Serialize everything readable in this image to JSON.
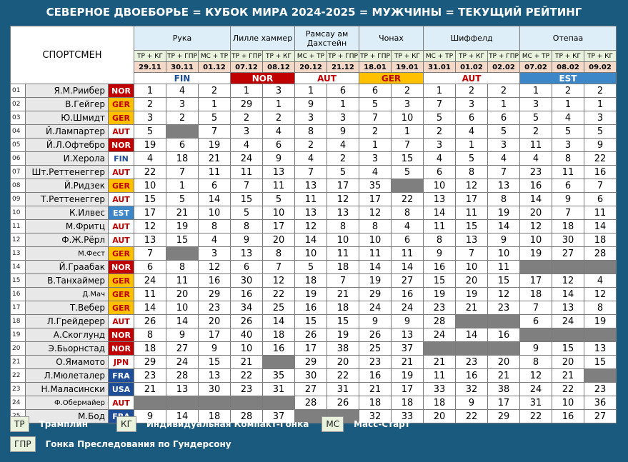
{
  "title": "СЕВЕРНОЕ ДВОЕБОРЬЕ = КУБОК МИРА 2024-2025 = МУЖЧИНЫ = ТЕКУЩИЙ РЕЙТИНГ",
  "header_athlete": "СПОРТСМЕН",
  "locations": [
    {
      "name": "Рука",
      "span": 3
    },
    {
      "name": "Лилле хаммер",
      "span": 2
    },
    {
      "name": "Рамсау ам Дахстейн",
      "span": 2
    },
    {
      "name": "Чонах",
      "span": 2
    },
    {
      "name": "Шиффелд",
      "span": 3
    },
    {
      "name": "Отепаа",
      "span": 3
    }
  ],
  "events": [
    "ТР + КГ",
    "ТР + ГПР",
    "МС + ТР",
    "ТР + ГПР",
    "ТР + КГ",
    "МС + ТР",
    "ТР + ГПР",
    "ТР + ГПР",
    "ТР + КГ",
    "МС + ТР",
    "ТР + КГ",
    "ТР + ГПР",
    "МС + ТР",
    "ТР + КГ",
    "ТР + КГ"
  ],
  "dates": [
    "29.11",
    "30.11",
    "01.12",
    "07.12",
    "08.12",
    "20.12",
    "21.12",
    "18.01",
    "19.01",
    "31.01",
    "01.02",
    "02.02",
    "07.02",
    "08.02",
    "09.02"
  ],
  "host_countries": [
    {
      "code": "FIN",
      "span": 3
    },
    {
      "code": "NOR",
      "span": 2
    },
    {
      "code": "AUT",
      "span": 2
    },
    {
      "code": "GER",
      "span": 2
    },
    {
      "code": "AUT",
      "span": 3
    },
    {
      "code": "EST",
      "span": 3
    }
  ],
  "athletes": [
    {
      "rank": "01",
      "name": "Я.М.Риибер",
      "country": "NOR",
      "results": [
        "1",
        "4",
        "2",
        "1",
        "3",
        "1",
        "6",
        "6",
        "2",
        "1",
        "2",
        "2",
        "1",
        "2",
        "2"
      ]
    },
    {
      "rank": "02",
      "name": "В.Гейгер",
      "country": "GER",
      "results": [
        "2",
        "3",
        "1",
        "29",
        "1",
        "9",
        "1",
        "5",
        "3",
        "7",
        "3",
        "1",
        "3",
        "1",
        "1"
      ]
    },
    {
      "rank": "03",
      "name": "Ю.Шмидт",
      "country": "GER",
      "results": [
        "3",
        "2",
        "5",
        "2",
        "2",
        "3",
        "3",
        "7",
        "10",
        "5",
        "6",
        "6",
        "5",
        "4",
        "3"
      ]
    },
    {
      "rank": "04",
      "name": "Й.Лампартер",
      "country": "AUT",
      "results": [
        "5",
        "",
        "7",
        "3",
        "4",
        "8",
        "9",
        "2",
        "1",
        "2",
        "4",
        "5",
        "2",
        "5",
        "5"
      ]
    },
    {
      "rank": "05",
      "name": "Й.Л.Офтебро",
      "country": "NOR",
      "results": [
        "19",
        "6",
        "19",
        "4",
        "6",
        "2",
        "4",
        "1",
        "7",
        "3",
        "1",
        "3",
        "11",
        "3",
        "9"
      ]
    },
    {
      "rank": "06",
      "name": "И.Херола",
      "country": "FIN",
      "results": [
        "4",
        "18",
        "21",
        "24",
        "9",
        "4",
        "2",
        "3",
        "15",
        "4",
        "5",
        "4",
        "4",
        "8",
        "22"
      ]
    },
    {
      "rank": "07",
      "name": "Шт.Реттенеггер",
      "country": "AUT",
      "results": [
        "22",
        "7",
        "11",
        "11",
        "13",
        "7",
        "5",
        "4",
        "5",
        "6",
        "8",
        "7",
        "23",
        "11",
        "16"
      ]
    },
    {
      "rank": "08",
      "name": "Й.Ридзек",
      "country": "GER",
      "results": [
        "10",
        "1",
        "6",
        "7",
        "11",
        "13",
        "17",
        "35",
        "",
        "10",
        "12",
        "13",
        "16",
        "6",
        "7"
      ]
    },
    {
      "rank": "09",
      "name": "Т.Реттенеггер",
      "country": "AUT",
      "results": [
        "15",
        "5",
        "14",
        "15",
        "5",
        "11",
        "12",
        "17",
        "22",
        "13",
        "17",
        "8",
        "14",
        "9",
        "6"
      ]
    },
    {
      "rank": "10",
      "name": "К.Илвес",
      "country": "EST",
      "results": [
        "17",
        "21",
        "10",
        "5",
        "10",
        "13",
        "13",
        "12",
        "8",
        "14",
        "11",
        "19",
        "20",
        "7",
        "11"
      ]
    },
    {
      "rank": "11",
      "name": "М.Фритц",
      "country": "AUT",
      "results": [
        "12",
        "19",
        "8",
        "8",
        "17",
        "12",
        "8",
        "8",
        "4",
        "11",
        "15",
        "14",
        "12",
        "18",
        "14"
      ]
    },
    {
      "rank": "12",
      "name": "Ф.Ж.Рёрл",
      "country": "AUT",
      "results": [
        "13",
        "15",
        "4",
        "9",
        "20",
        "14",
        "10",
        "10",
        "6",
        "8",
        "13",
        "9",
        "10",
        "30",
        "18"
      ]
    },
    {
      "rank": "13",
      "name": "М.Фест",
      "country": "GER",
      "results": [
        "7",
        "",
        "3",
        "13",
        "8",
        "10",
        "11",
        "11",
        "11",
        "9",
        "7",
        "10",
        "19",
        "27",
        "28"
      ]
    },
    {
      "rank": "14",
      "name": "Й.Граабак",
      "country": "NOR",
      "results": [
        "6",
        "8",
        "12",
        "6",
        "7",
        "5",
        "18",
        "14",
        "14",
        "16",
        "10",
        "11",
        "",
        "",
        ""
      ]
    },
    {
      "rank": "15",
      "name": "В.Танхаймер",
      "country": "GER",
      "results": [
        "24",
        "11",
        "16",
        "30",
        "12",
        "18",
        "7",
        "19",
        "27",
        "15",
        "20",
        "15",
        "17",
        "12",
        "4"
      ]
    },
    {
      "rank": "16",
      "name": "Д.Мач",
      "country": "GER",
      "results": [
        "11",
        "20",
        "29",
        "16",
        "22",
        "19",
        "21",
        "29",
        "16",
        "19",
        "19",
        "12",
        "18",
        "14",
        "12"
      ]
    },
    {
      "rank": "17",
      "name": "Т.Вебер",
      "country": "GER",
      "results": [
        "14",
        "10",
        "23",
        "34",
        "25",
        "16",
        "18",
        "24",
        "24",
        "23",
        "21",
        "23",
        "7",
        "13",
        "8"
      ]
    },
    {
      "rank": "18",
      "name": "Л.Грейдерер",
      "country": "AUT",
      "results": [
        "26",
        "14",
        "20",
        "26",
        "14",
        "15",
        "15",
        "9",
        "9",
        "28",
        "",
        "",
        "6",
        "24",
        "19"
      ]
    },
    {
      "rank": "19",
      "name": "А.Скоглунд",
      "country": "NOR",
      "results": [
        "8",
        "9",
        "17",
        "40",
        "18",
        "26",
        "19",
        "26",
        "13",
        "24",
        "14",
        "16",
        "",
        "",
        ""
      ]
    },
    {
      "rank": "20",
      "name": "Э.Бьорнстад",
      "country": "NOR",
      "results": [
        "18",
        "27",
        "9",
        "10",
        "16",
        "17",
        "38",
        "25",
        "37",
        "",
        "",
        "",
        "9",
        "15",
        "13"
      ]
    },
    {
      "rank": "21",
      "name": "О.Ямамото",
      "country": "JPN",
      "results": [
        "29",
        "24",
        "15",
        "21",
        "",
        "29",
        "20",
        "23",
        "21",
        "21",
        "23",
        "20",
        "8",
        "20",
        "15"
      ]
    },
    {
      "rank": "22",
      "name": "Л.Мюлеталер",
      "country": "FRA",
      "results": [
        "23",
        "28",
        "13",
        "22",
        "35",
        "30",
        "22",
        "16",
        "19",
        "11",
        "16",
        "21",
        "12",
        "21",
        ""
      ]
    },
    {
      "rank": "23",
      "name": "Н.Маласински",
      "country": "USA",
      "results": [
        "21",
        "13",
        "30",
        "23",
        "31",
        "27",
        "31",
        "21",
        "17",
        "33",
        "32",
        "38",
        "24",
        "22",
        "23"
      ]
    },
    {
      "rank": "24",
      "name": "Ф.Обермайер",
      "country": "AUT",
      "results": [
        "",
        "",
        "",
        "",
        "",
        "28",
        "26",
        "18",
        "18",
        "18",
        "9",
        "17",
        "31",
        "10",
        "36"
      ]
    },
    {
      "rank": "25",
      "name": "М.Бод",
      "country": "FRA",
      "results": [
        "9",
        "14",
        "18",
        "28",
        "37",
        "",
        "",
        "32",
        "33",
        "20",
        "22",
        "29",
        "22",
        "16",
        "27"
      ]
    }
  ],
  "legend": [
    {
      "abbr": "ТР",
      "text": "Трамплин"
    },
    {
      "abbr": "КГ",
      "text": "Индивидуальная Компакт-Гонка"
    },
    {
      "abbr": "МС",
      "text": "Масс-Старт"
    },
    {
      "abbr": "ГПР",
      "text": "Гонка Преследования по Гундерсону"
    }
  ]
}
